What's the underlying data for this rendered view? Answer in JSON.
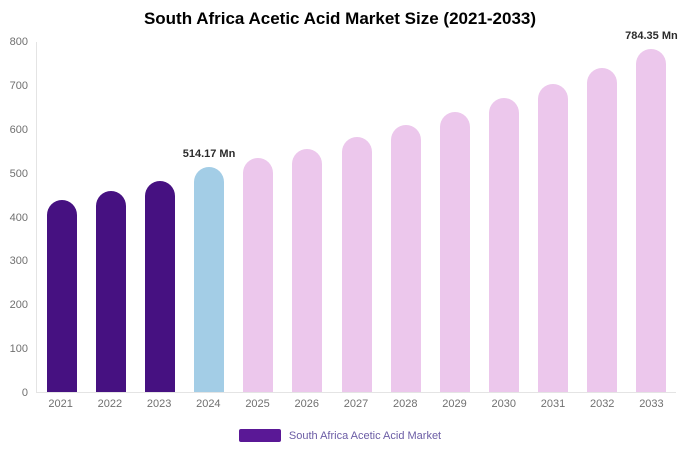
{
  "title": "South Africa Acetic Acid Market Size (2021-2033)",
  "legend": {
    "label": "South Africa Acetic Acid Market",
    "swatch_color": "#5a1896"
  },
  "colors": {
    "historical": "#461181",
    "current": "#a3cde6",
    "forecast": "#ecc7ec"
  },
  "chart_data": {
    "type": "bar",
    "title": "South Africa Acetic Acid Market Size (2021-2033)",
    "categories": [
      "2021",
      "2022",
      "2023",
      "2024",
      "2025",
      "2026",
      "2027",
      "2028",
      "2029",
      "2030",
      "2031",
      "2032",
      "2033"
    ],
    "values": [
      438,
      460,
      482,
      514.17,
      534,
      556,
      583,
      610,
      641,
      671,
      705,
      741,
      784.35
    ],
    "bar_colors": [
      "#461181",
      "#461181",
      "#461181",
      "#a3cde6",
      "#ecc7ec",
      "#ecc7ec",
      "#ecc7ec",
      "#ecc7ec",
      "#ecc7ec",
      "#ecc7ec",
      "#ecc7ec",
      "#ecc7ec",
      "#ecc7ec"
    ],
    "annotations": [
      {
        "index": 3,
        "text": "514.17 Mn"
      },
      {
        "index": 12,
        "text": "784.35 Mn"
      }
    ],
    "xlabel": "",
    "ylabel": "",
    "ylim": [
      0,
      800
    ],
    "yticks": [
      0,
      100,
      200,
      300,
      400,
      500,
      600,
      700,
      800
    ],
    "grid": false,
    "legend_position": "bottom"
  }
}
